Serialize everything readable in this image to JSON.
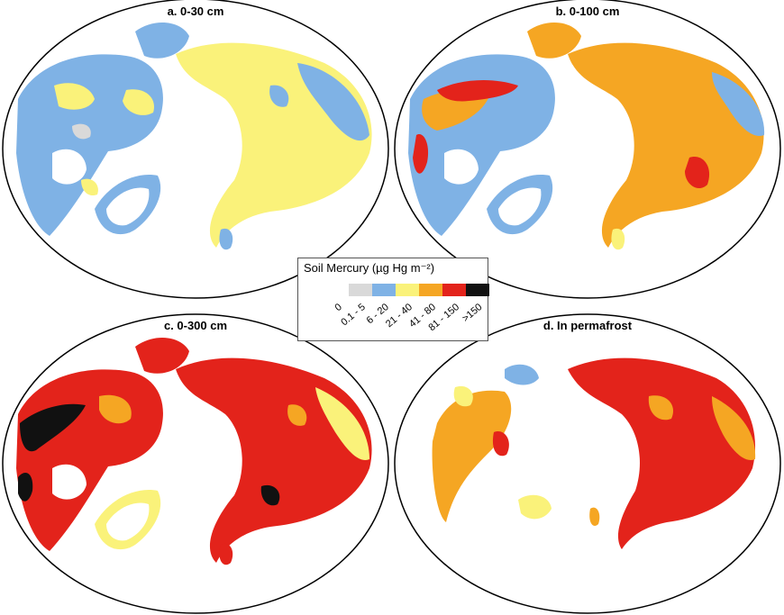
{
  "panels": [
    {
      "id": "a",
      "title": "a. 0-30 cm"
    },
    {
      "id": "b",
      "title": "b. 0-100 cm"
    },
    {
      "id": "c",
      "title": "c. 0-300 cm"
    },
    {
      "id": "d",
      "title": "d. In permafrost"
    }
  ],
  "legend": {
    "title": "Soil Mercury (µg Hg m⁻²)",
    "classes": [
      {
        "label": "0",
        "color": "#ffffff"
      },
      {
        "label": "0.1 - 5",
        "color": "#d9d9d9"
      },
      {
        "label": "6 - 20",
        "color": "#7fb2e5"
      },
      {
        "label": "21 - 40",
        "color": "#faf27a"
      },
      {
        "label": "41 - 80",
        "color": "#f5a623"
      },
      {
        "label": "81 - 150",
        "color": "#e3231b"
      },
      {
        "label": ">150",
        "color": "#111111"
      }
    ]
  }
}
